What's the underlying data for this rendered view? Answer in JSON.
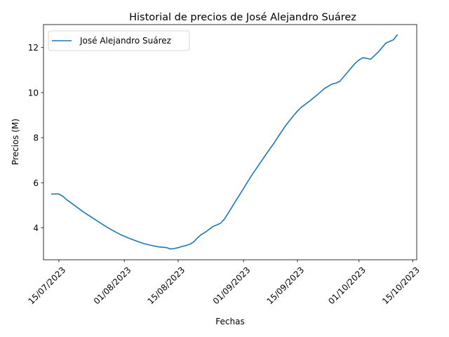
{
  "chart_data": {
    "type": "line",
    "title": "Historial de precios de José Alejandro Suárez",
    "xlabel": "Fechas",
    "ylabel": "Precios (M)",
    "x_range": [
      "2023-07-11",
      "2023-10-16"
    ],
    "ylim": [
      2.58,
      13.02
    ],
    "x_ticks": [
      "15/07/2023",
      "01/08/2023",
      "15/08/2023",
      "01/09/2023",
      "15/09/2023",
      "01/10/2023",
      "15/10/2023"
    ],
    "x_tick_dates": [
      "2023-07-15",
      "2023-08-01",
      "2023-08-15",
      "2023-09-01",
      "2023-09-15",
      "2023-10-01",
      "2023-10-15"
    ],
    "y_ticks": [
      4,
      6,
      8,
      10,
      12
    ],
    "y_tick_labels": [
      "4",
      "6",
      "8",
      "10",
      "12"
    ],
    "grid": false,
    "legend": {
      "position": "upper-left",
      "entries": [
        "José Alejandro Suárez"
      ]
    },
    "series": [
      {
        "name": "José Alejandro Suárez",
        "color": "#1f77b4",
        "x": [
          "2023-07-13",
          "2023-07-15",
          "2023-07-16",
          "2023-07-17",
          "2023-07-19",
          "2023-07-21",
          "2023-07-23",
          "2023-07-25",
          "2023-07-27",
          "2023-07-29",
          "2023-07-31",
          "2023-08-02",
          "2023-08-04",
          "2023-08-06",
          "2023-08-08",
          "2023-08-10",
          "2023-08-12",
          "2023-08-13",
          "2023-08-14",
          "2023-08-15",
          "2023-08-16",
          "2023-08-17",
          "2023-08-18",
          "2023-08-19",
          "2023-08-20",
          "2023-08-21",
          "2023-08-22",
          "2023-08-24",
          "2023-08-26",
          "2023-08-27",
          "2023-08-28",
          "2023-08-30",
          "2023-09-01",
          "2023-09-03",
          "2023-09-05",
          "2023-09-07",
          "2023-09-09",
          "2023-09-10",
          "2023-09-12",
          "2023-09-14",
          "2023-09-15",
          "2023-09-16",
          "2023-09-18",
          "2023-09-20",
          "2023-09-22",
          "2023-09-24",
          "2023-09-25",
          "2023-09-26",
          "2023-09-28",
          "2023-09-30",
          "2023-10-01",
          "2023-10-02",
          "2023-10-03",
          "2023-10-04",
          "2023-10-06",
          "2023-10-07",
          "2023-10-08",
          "2023-10-10",
          "2023-10-11"
        ],
        "values": [
          5.5,
          5.5,
          5.4,
          5.25,
          5.0,
          4.75,
          4.52,
          4.3,
          4.08,
          3.88,
          3.7,
          3.55,
          3.42,
          3.3,
          3.22,
          3.15,
          3.12,
          3.06,
          3.08,
          3.12,
          3.17,
          3.21,
          3.27,
          3.37,
          3.55,
          3.7,
          3.8,
          4.05,
          4.2,
          4.38,
          4.65,
          5.2,
          5.75,
          6.3,
          6.8,
          7.3,
          7.78,
          8.05,
          8.55,
          8.98,
          9.18,
          9.35,
          9.6,
          9.88,
          10.18,
          10.38,
          10.42,
          10.5,
          10.9,
          11.3,
          11.45,
          11.55,
          11.52,
          11.48,
          11.8,
          12.0,
          12.2,
          12.35,
          12.58
        ]
      }
    ]
  }
}
